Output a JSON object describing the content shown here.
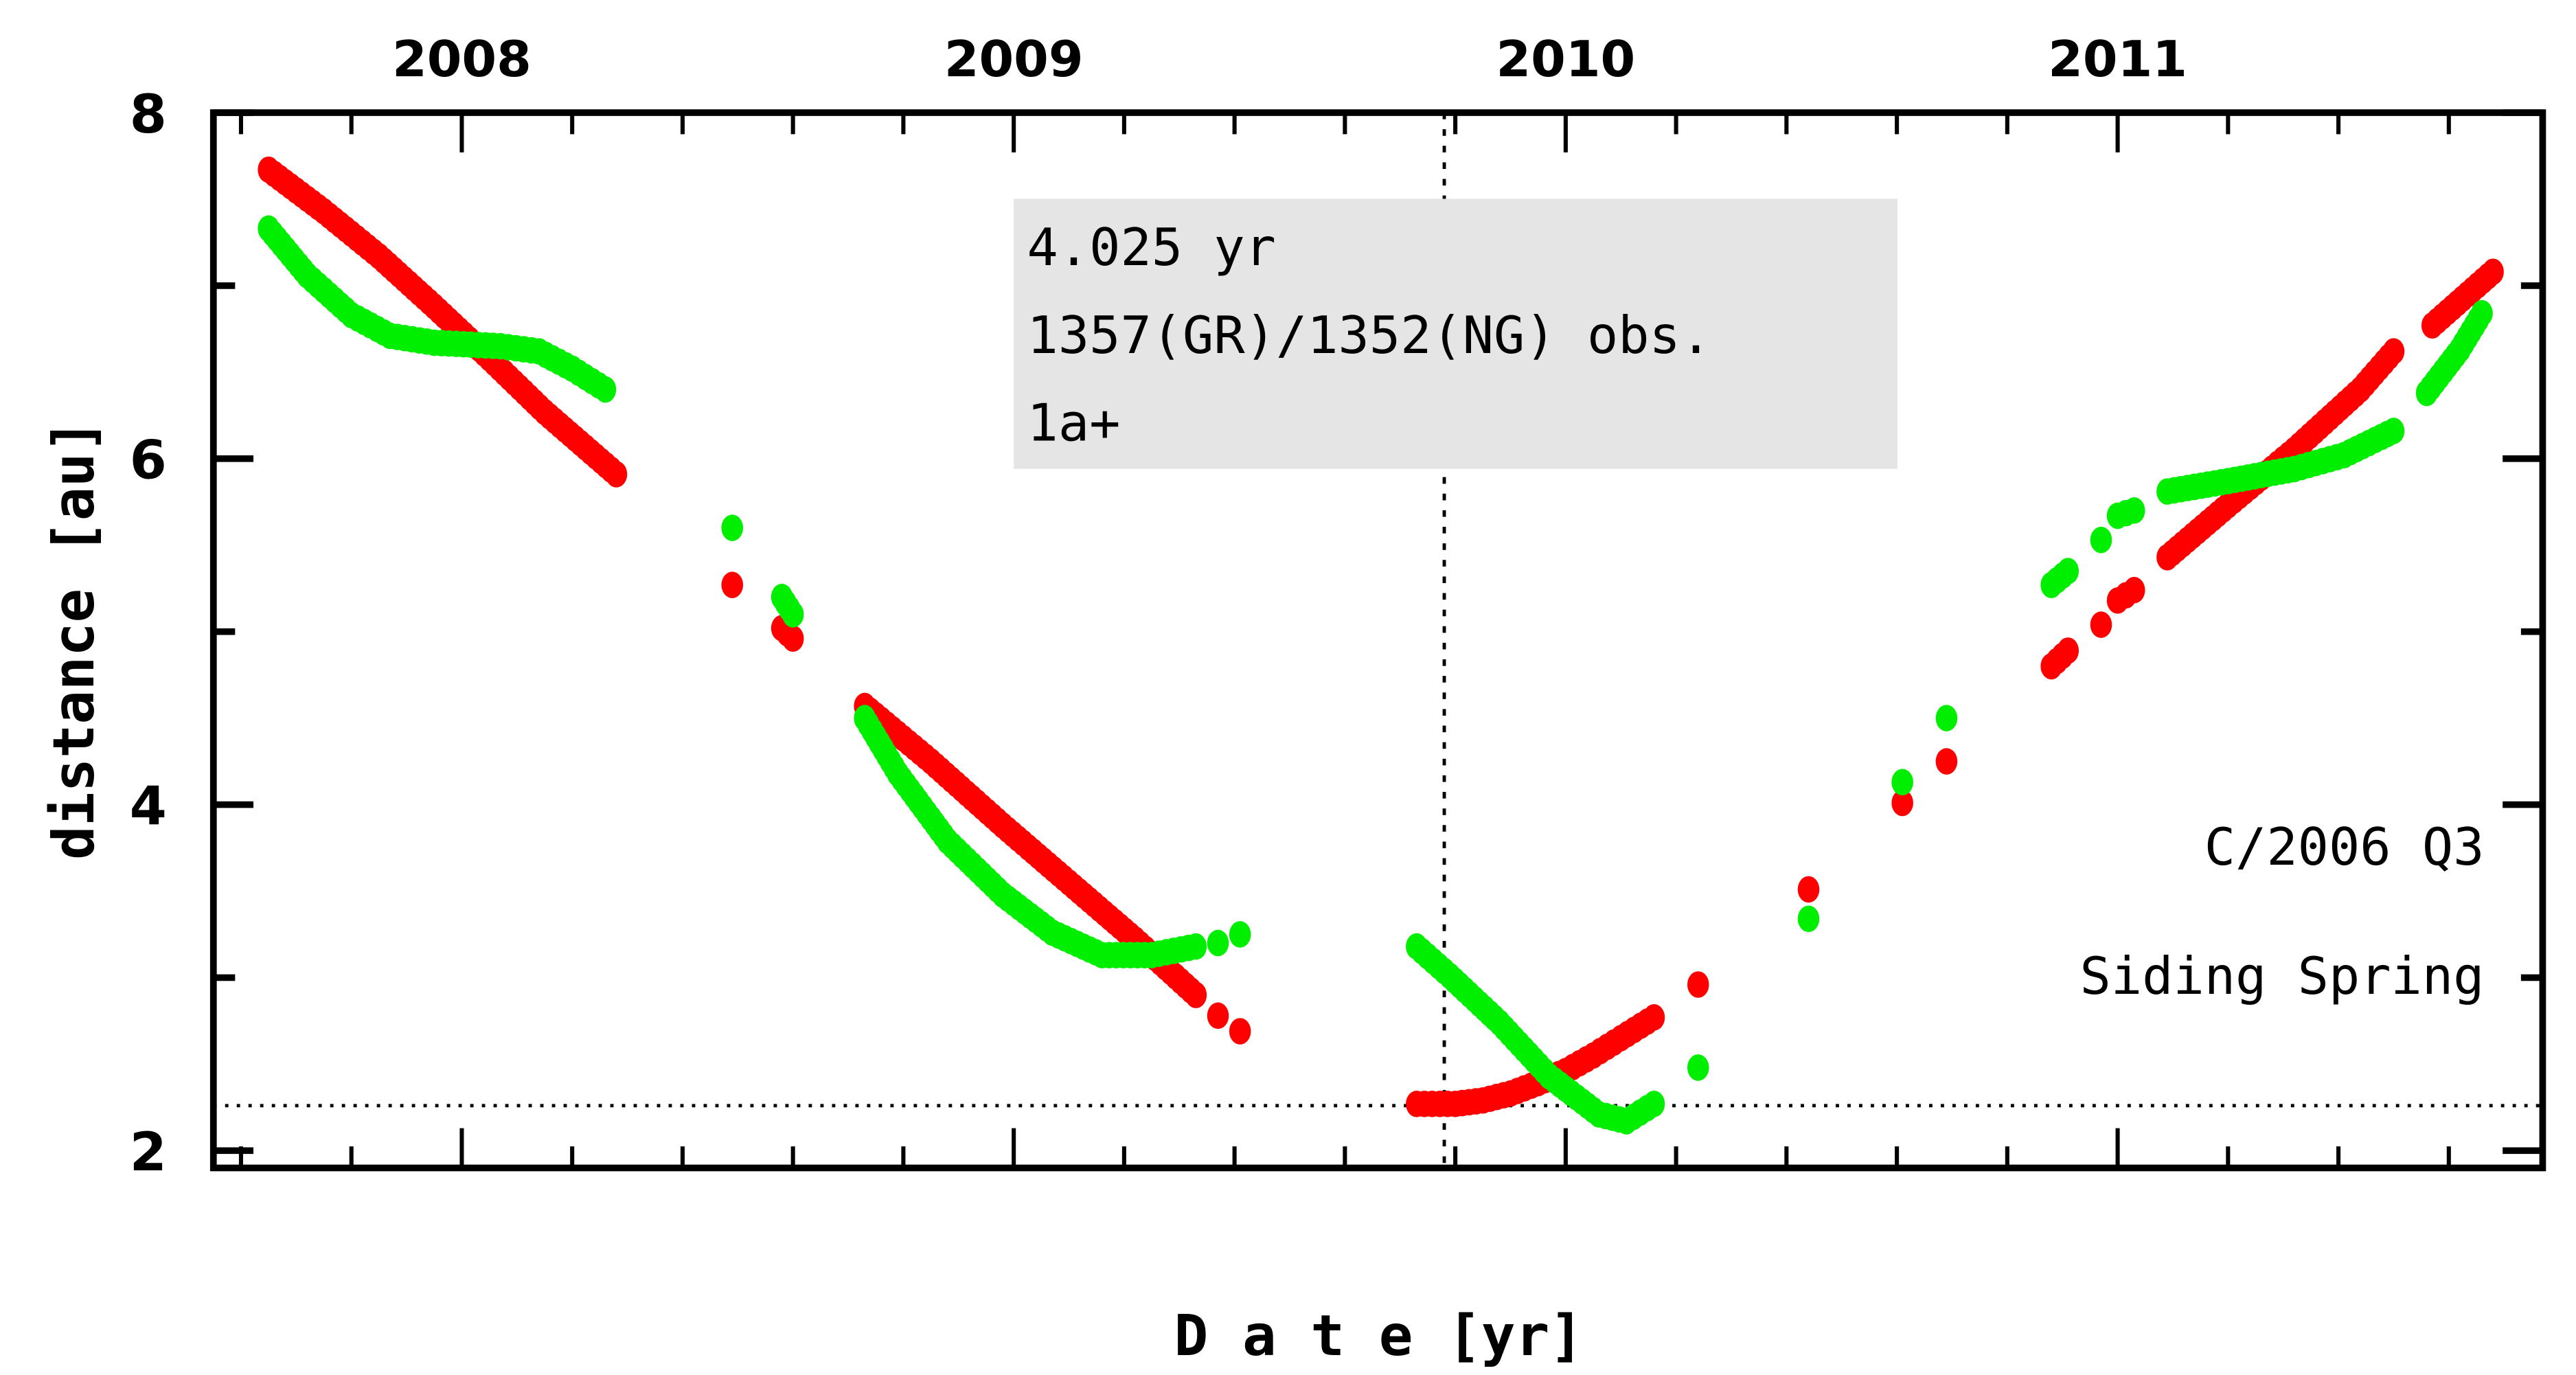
{
  "chart_data": {
    "type": "scatter",
    "title": "",
    "xlabel": "D a t e [yr]",
    "ylabel": "distance [au]",
    "xlim": [
      2007.55,
      2011.77
    ],
    "ylim": [
      1.9,
      8.0
    ],
    "top_tick_labels": [
      "2008",
      "2009",
      "2010",
      "2011"
    ],
    "top_tick_values": [
      2008,
      2009,
      2010,
      2011
    ],
    "y_tick_labels": [
      "2",
      "4",
      "6",
      "8"
    ],
    "y_tick_values": [
      2,
      4,
      6,
      8
    ],
    "x_minor_step": 0.2,
    "y_minor_step": 1,
    "grid": false,
    "reference_lines": {
      "vertical_x": 2009.78,
      "horizontal_y": 2.26
    },
    "info_box": {
      "lines": [
        "4.025 yr",
        "1357(GR)/1352(NG) obs.",
        "1a+"
      ],
      "background": "#e5e5e5",
      "placement": "top-center"
    },
    "annotations": [
      "C/2006 Q3",
      "Siding Spring"
    ],
    "series": [
      {
        "name": "GR",
        "color": "#ff0000",
        "segments": [
          [
            [
              2007.65,
              7.67
            ],
            [
              2007.75,
              7.43
            ],
            [
              2007.85,
              7.17
            ],
            [
              2007.95,
              6.88
            ],
            [
              2008.05,
              6.58
            ],
            [
              2008.15,
              6.27
            ],
            [
              2008.28,
              5.91
            ]
          ],
          [
            [
              2008.49,
              5.27
            ]
          ],
          [
            [
              2008.58,
              5.02
            ],
            [
              2008.6,
              4.96
            ]
          ],
          [
            [
              2008.73,
              4.57
            ],
            [
              2008.85,
              4.25
            ],
            [
              2008.98,
              3.88
            ],
            [
              2009.1,
              3.55
            ],
            [
              2009.22,
              3.22
            ],
            [
              2009.33,
              2.9
            ]
          ],
          [
            [
              2009.37,
              2.78
            ]
          ],
          [
            [
              2009.41,
              2.69
            ]
          ],
          [
            [
              2009.73,
              2.27
            ],
            [
              2009.8,
              2.27
            ],
            [
              2009.85,
              2.29
            ],
            [
              2009.9,
              2.33
            ],
            [
              2009.95,
              2.39
            ],
            [
              2010.0,
              2.46
            ],
            [
              2010.05,
              2.55
            ],
            [
              2010.1,
              2.65
            ],
            [
              2010.16,
              2.77
            ]
          ],
          [
            [
              2010.24,
              2.96
            ]
          ],
          [
            [
              2010.44,
              3.51
            ]
          ],
          [
            [
              2010.61,
              4.01
            ]
          ],
          [
            [
              2010.69,
              4.25
            ]
          ],
          [
            [
              2010.88,
              4.8
            ],
            [
              2010.91,
              4.89
            ]
          ],
          [
            [
              2010.97,
              5.04
            ]
          ],
          [
            [
              2011.0,
              5.18
            ],
            [
              2011.03,
              5.24
            ]
          ],
          [
            [
              2011.09,
              5.43
            ],
            [
              2011.2,
              5.73
            ],
            [
              2011.32,
              6.05
            ],
            [
              2011.44,
              6.4
            ],
            [
              2011.5,
              6.62
            ]
          ],
          [
            [
              2011.57,
              6.77
            ],
            [
              2011.68,
              7.08
            ]
          ]
        ]
      },
      {
        "name": "NG",
        "color": "#00ee00",
        "segments": [
          [
            [
              2007.65,
              7.33
            ],
            [
              2007.72,
              7.06
            ],
            [
              2007.8,
              6.83
            ],
            [
              2007.87,
              6.71
            ],
            [
              2007.95,
              6.67
            ],
            [
              2008.07,
              6.65
            ],
            [
              2008.14,
              6.62
            ],
            [
              2008.2,
              6.52
            ],
            [
              2008.26,
              6.4
            ]
          ],
          [
            [
              2008.49,
              5.6
            ]
          ],
          [
            [
              2008.58,
              5.2
            ],
            [
              2008.6,
              5.1
            ]
          ],
          [
            [
              2008.73,
              4.5
            ],
            [
              2008.79,
              4.18
            ],
            [
              2008.88,
              3.79
            ],
            [
              2008.98,
              3.48
            ],
            [
              2009.07,
              3.26
            ],
            [
              2009.16,
              3.13
            ],
            [
              2009.25,
              3.13
            ],
            [
              2009.33,
              3.18
            ]
          ],
          [
            [
              2009.37,
              3.2
            ]
          ],
          [
            [
              2009.41,
              3.25
            ]
          ],
          [
            [
              2009.73,
              3.18
            ],
            [
              2009.79,
              3.01
            ],
            [
              2009.88,
              2.74
            ],
            [
              2009.97,
              2.43
            ],
            [
              2010.06,
              2.21
            ],
            [
              2010.11,
              2.17
            ],
            [
              2010.16,
              2.27
            ]
          ],
          [
            [
              2010.24,
              2.48
            ]
          ],
          [
            [
              2010.44,
              3.34
            ]
          ],
          [
            [
              2010.61,
              4.13
            ]
          ],
          [
            [
              2010.69,
              4.5
            ]
          ],
          [
            [
              2010.88,
              5.27
            ],
            [
              2010.91,
              5.35
            ]
          ],
          [
            [
              2010.97,
              5.53
            ]
          ],
          [
            [
              2011.0,
              5.67
            ],
            [
              2011.03,
              5.7
            ]
          ],
          [
            [
              2011.09,
              5.81
            ],
            [
              2011.2,
              5.87
            ],
            [
              2011.32,
              5.94
            ],
            [
              2011.41,
              6.02
            ],
            [
              2011.5,
              6.16
            ]
          ],
          [
            [
              2011.56,
              6.38
            ],
            [
              2011.62,
              6.63
            ],
            [
              2011.66,
              6.84
            ]
          ]
        ]
      }
    ]
  }
}
